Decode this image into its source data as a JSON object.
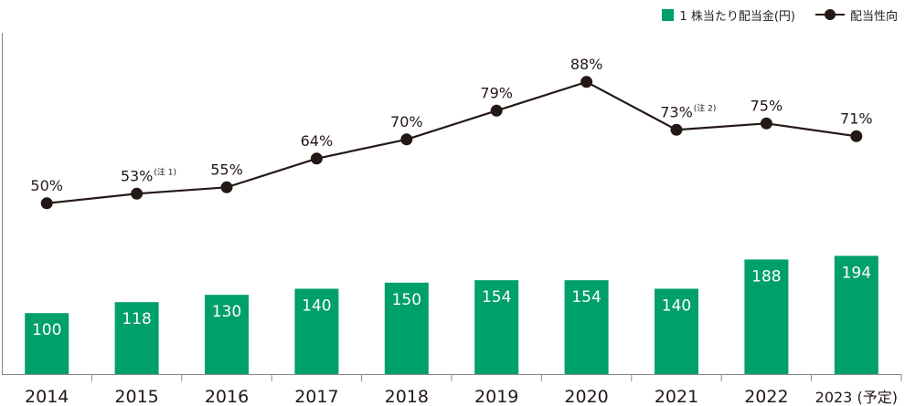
{
  "legend": {
    "bar_label": "1 株当たり配当金(円)",
    "line_label": "配当性向"
  },
  "colors": {
    "bar": "#00a06a",
    "line": "#231815",
    "bar_label": "#ffffff",
    "text": "#231815",
    "axis": "#888888"
  },
  "chart_data": {
    "type": "bar+line",
    "categories": [
      "2014",
      "2015",
      "2016",
      "2017",
      "2018",
      "2019",
      "2020",
      "2021",
      "2022",
      "2023 (予定)"
    ],
    "series": [
      {
        "name": "1 株当たり配当金(円)",
        "type": "bar",
        "values": [
          100,
          118,
          130,
          140,
          150,
          154,
          154,
          140,
          188,
          194
        ],
        "labels": [
          "100",
          "118",
          "130",
          "140",
          "150",
          "154",
          "154",
          "140",
          "188",
          "194"
        ]
      },
      {
        "name": "配当性向",
        "type": "line",
        "values": [
          50,
          53,
          55,
          64,
          70,
          79,
          88,
          73,
          75,
          71
        ],
        "labels": [
          "50%",
          "53%",
          "55%",
          "64%",
          "70%",
          "79%",
          "88%",
          "73%",
          "75%",
          "71%"
        ],
        "notes": [
          "",
          "(注 1)",
          "",
          "",
          "",
          "",
          "",
          "(注 2)",
          "",
          ""
        ]
      }
    ],
    "legend_position": "top-right",
    "grid": false
  }
}
